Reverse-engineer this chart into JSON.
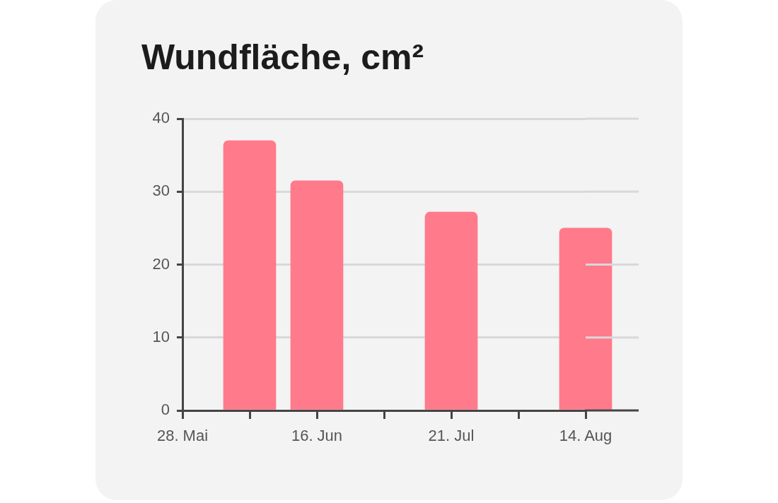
{
  "chart_data": {
    "type": "bar",
    "title": "Wundfläche, cm²",
    "categories": [
      "28. Mai",
      null,
      "16. Jun",
      null,
      "21. Jul",
      null,
      "14. Aug"
    ],
    "values": [
      null,
      37,
      31.5,
      null,
      27.2,
      null,
      25
    ],
    "color": "#ff7a8a",
    "ylim": [
      0,
      40
    ],
    "yticks": [
      0,
      10,
      20,
      30,
      40
    ],
    "grid": "y"
  }
}
